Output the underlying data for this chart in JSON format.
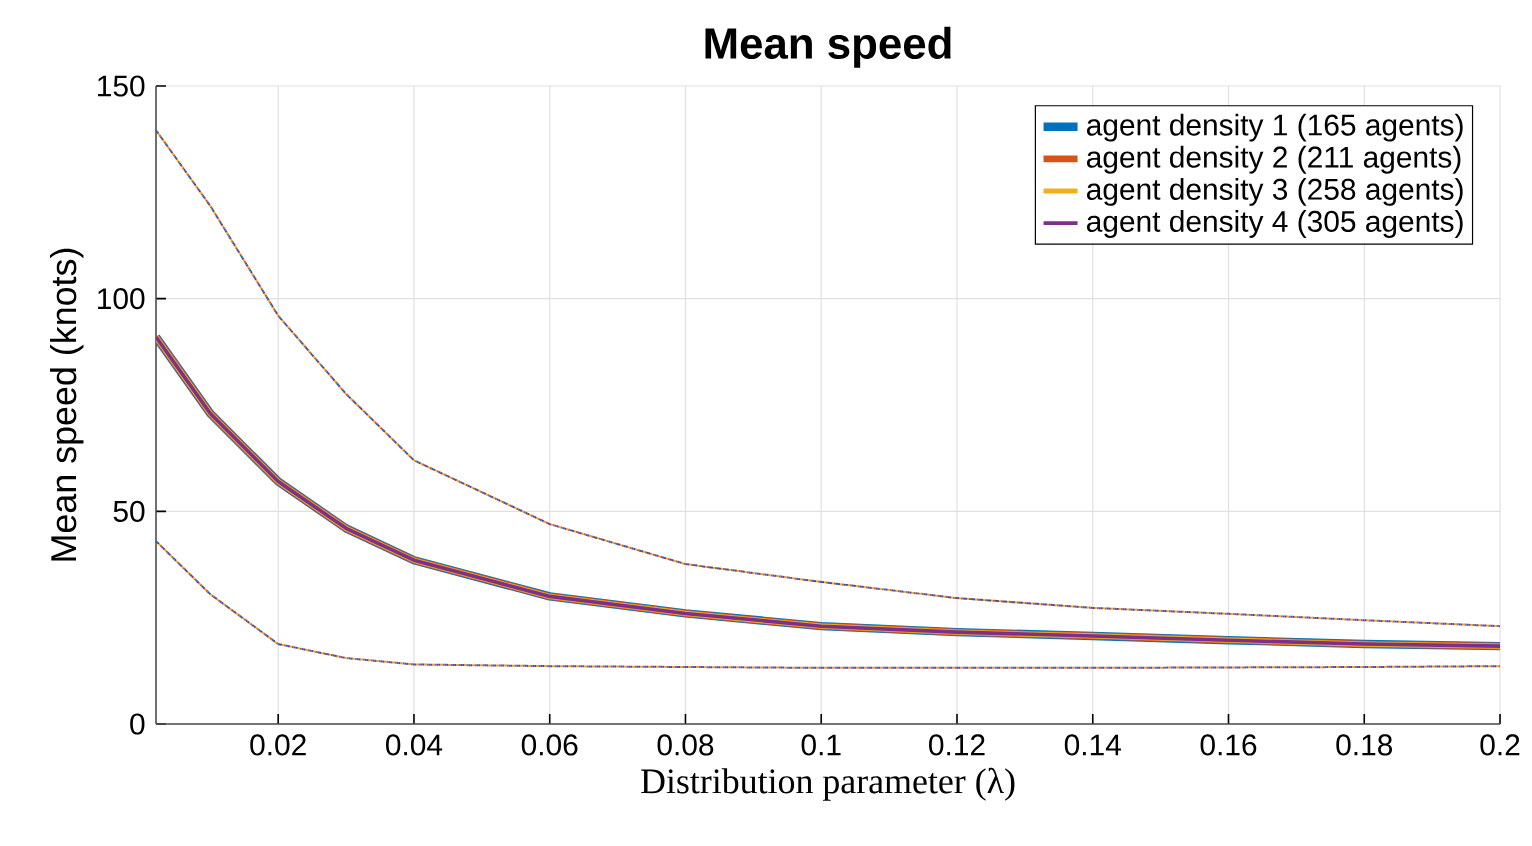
{
  "chart_data": {
    "type": "line",
    "title": "Mean speed",
    "xlabel": "Distribution parameter (λ)",
    "ylabel": "Mean speed (knots)",
    "x": [
      0.002,
      0.01,
      0.02,
      0.03,
      0.04,
      0.06,
      0.08,
      0.1,
      0.12,
      0.14,
      0.16,
      0.18,
      0.2
    ],
    "series": [
      {
        "name": "agent density 1 (165 agents)",
        "color": "#0072bd",
        "values": [
          91,
          73,
          57,
          46,
          38.5,
          30,
          26,
          23,
          21.6,
          20.7,
          19.7,
          18.8,
          18.3
        ]
      },
      {
        "name": "agent density 2 (211 agents)",
        "color": "#d95319",
        "values": [
          91,
          73,
          57,
          46,
          38.5,
          30,
          26,
          23,
          21.6,
          20.7,
          19.7,
          18.8,
          18.3
        ]
      },
      {
        "name": "agent density 3 (258 agents)",
        "color": "#edb120",
        "values": [
          91,
          73,
          57,
          46,
          38.5,
          30,
          26,
          23,
          21.6,
          20.7,
          19.7,
          18.8,
          18.3
        ]
      },
      {
        "name": "agent density 4 (305 agents)",
        "color": "#7e2f8e",
        "values": [
          91,
          73,
          57,
          46,
          38.5,
          30,
          26,
          23,
          21.6,
          20.7,
          19.7,
          18.8,
          18.3
        ]
      },
      {
        "color": "#0072bd",
        "line_style": "dotted",
        "values": [
          43,
          30.5,
          18.8,
          15.5,
          14,
          13.6,
          13.4,
          13.2,
          13.2,
          13.2,
          13.3,
          13.4,
          13.6
        ]
      },
      {
        "color": "#d95319",
        "line_style": "dotted",
        "values": [
          43,
          30.5,
          18.8,
          15.5,
          14,
          13.6,
          13.4,
          13.2,
          13.2,
          13.2,
          13.3,
          13.4,
          13.6
        ]
      },
      {
        "color": "#edb120",
        "line_style": "dotted",
        "values": [
          43,
          30.5,
          18.8,
          15.5,
          14,
          13.6,
          13.4,
          13.2,
          13.2,
          13.2,
          13.3,
          13.4,
          13.6
        ]
      },
      {
        "color": "#7e2f8e",
        "line_style": "dotted",
        "values": [
          43,
          30.5,
          18.8,
          15.5,
          14,
          13.6,
          13.4,
          13.2,
          13.2,
          13.2,
          13.3,
          13.4,
          13.6
        ]
      },
      {
        "color": "#0072bd",
        "line_style": "dotted",
        "values": [
          139.6,
          121.8,
          96,
          77.6,
          62,
          47,
          37.6,
          33.4,
          29.6,
          27.3,
          25.9,
          24.4,
          23
        ]
      },
      {
        "color": "#d95319",
        "line_style": "dotted",
        "values": [
          139.6,
          121.8,
          96,
          77.6,
          62,
          47,
          37.6,
          33.4,
          29.6,
          27.3,
          25.9,
          24.4,
          23
        ]
      },
      {
        "color": "#edb120",
        "line_style": "dotted",
        "values": [
          139.6,
          121.8,
          96,
          77.6,
          62,
          47,
          37.6,
          33.4,
          29.6,
          27.3,
          25.9,
          24.4,
          23
        ]
      },
      {
        "color": "#7e2f8e",
        "line_style": "dotted",
        "values": [
          139.6,
          121.8,
          96,
          77.6,
          62,
          47,
          37.6,
          33.4,
          29.6,
          27.3,
          25.9,
          24.4,
          23
        ]
      }
    ],
    "xlim": [
      0.002,
      0.2
    ],
    "ylim": [
      0,
      150
    ],
    "xticks": [
      0.02,
      0.04,
      0.06,
      0.08,
      0.1,
      0.12,
      0.14,
      0.16,
      0.18,
      0.2
    ],
    "yticks": [
      0,
      50,
      100,
      150
    ],
    "grid": true,
    "legend": "top right",
    "line_style": "solid",
    "marker": "none"
  }
}
